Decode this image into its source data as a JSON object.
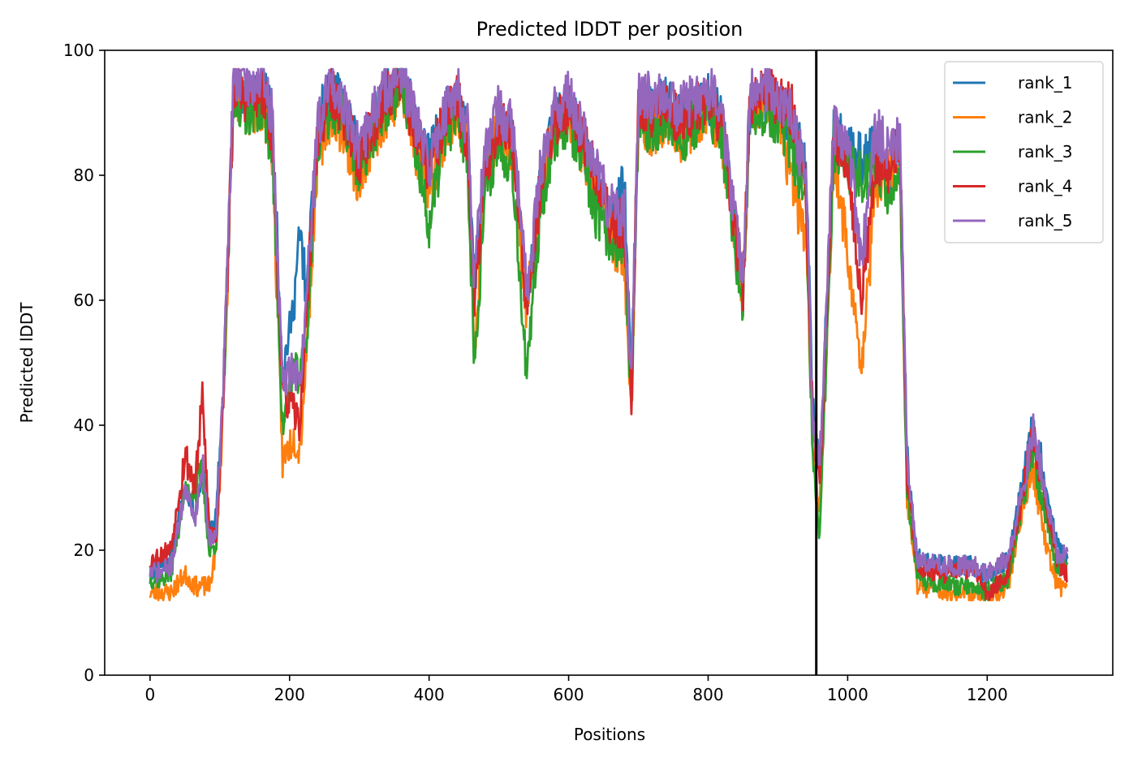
{
  "chart_data": {
    "type": "line",
    "title": "Predicted lDDT per position",
    "xlabel": "Positions",
    "ylabel": "Predicted lDDT",
    "xlim": [
      -65,
      1380
    ],
    "ylim": [
      0,
      100
    ],
    "xticks": [
      0,
      200,
      400,
      600,
      800,
      1000,
      1200
    ],
    "yticks": [
      0,
      20,
      40,
      60,
      80,
      100
    ],
    "grid": false,
    "legend_position": "top-right",
    "vline_x": 955,
    "vline_color": "#000000",
    "series": [
      {
        "name": "rank_1",
        "color": "#1f77b4",
        "offset": 0.6,
        "seed": 11,
        "x": [
          0,
          15,
          30,
          50,
          65,
          75,
          85,
          95,
          105,
          120,
          140,
          160,
          175,
          190,
          205,
          215,
          225,
          240,
          260,
          280,
          300,
          320,
          340,
          360,
          380,
          400,
          420,
          440,
          455,
          465,
          480,
          500,
          520,
          540,
          560,
          580,
          600,
          620,
          640,
          660,
          680,
          690,
          700,
          720,
          740,
          760,
          780,
          800,
          820,
          840,
          850,
          860,
          880,
          900,
          920,
          940,
          950,
          960,
          980,
          1000,
          1020,
          1040,
          1060,
          1075,
          1085,
          1100,
          1140,
          1180,
          1200,
          1230,
          1250,
          1265,
          1280,
          1300,
          1315
        ],
        "y": [
          16,
          17,
          18,
          30,
          25,
          33,
          22,
          25,
          45,
          93,
          92,
          94,
          88,
          48,
          58,
          70,
          60,
          88,
          93,
          90,
          82,
          88,
          93,
          96,
          88,
          82,
          88,
          93,
          85,
          62,
          80,
          88,
          85,
          58,
          78,
          88,
          90,
          85,
          78,
          72,
          78,
          45,
          90,
          90,
          92,
          89,
          90,
          92,
          88,
          68,
          60,
          90,
          92,
          90,
          88,
          80,
          42,
          32,
          86,
          84,
          82,
          84,
          80,
          85,
          35,
          18,
          17,
          17,
          15,
          18,
          30,
          40,
          32,
          20,
          18
        ]
      },
      {
        "name": "rank_2",
        "color": "#ff7f0e",
        "offset": -1.8,
        "seed": 23,
        "x": [
          0,
          15,
          30,
          50,
          65,
          75,
          85,
          95,
          105,
          120,
          140,
          160,
          175,
          190,
          205,
          215,
          225,
          240,
          260,
          280,
          300,
          320,
          340,
          360,
          380,
          400,
          420,
          440,
          455,
          465,
          480,
          500,
          520,
          540,
          560,
          580,
          600,
          620,
          640,
          660,
          680,
          690,
          700,
          720,
          740,
          760,
          780,
          800,
          820,
          840,
          850,
          860,
          880,
          900,
          920,
          940,
          950,
          960,
          980,
          1000,
          1020,
          1040,
          1060,
          1075,
          1085,
          1100,
          1140,
          1180,
          1200,
          1230,
          1250,
          1265,
          1280,
          1300,
          1315
        ],
        "y": [
          15,
          15,
          15,
          18,
          16,
          16,
          16,
          22,
          45,
          95,
          92,
          93,
          86,
          36,
          40,
          38,
          55,
          85,
          92,
          88,
          80,
          88,
          92,
          95,
          86,
          80,
          87,
          92,
          86,
          52,
          82,
          90,
          86,
          60,
          80,
          90,
          91,
          86,
          80,
          73,
          66,
          45,
          90,
          89,
          91,
          88,
          90,
          93,
          88,
          70,
          62,
          92,
          93,
          93,
          80,
          72,
          40,
          28,
          84,
          70,
          50,
          80,
          82,
          84,
          30,
          16,
          15,
          15,
          14,
          16,
          28,
          36,
          25,
          16,
          16
        ]
      },
      {
        "name": "rank_3",
        "color": "#2ca02c",
        "offset": -0.6,
        "seed": 37,
        "x": [
          0,
          15,
          30,
          50,
          65,
          75,
          85,
          95,
          105,
          120,
          140,
          160,
          175,
          190,
          205,
          215,
          225,
          240,
          260,
          280,
          300,
          320,
          340,
          360,
          380,
          400,
          420,
          440,
          455,
          465,
          480,
          500,
          520,
          540,
          560,
          580,
          600,
          620,
          640,
          660,
          680,
          690,
          700,
          720,
          740,
          760,
          780,
          800,
          820,
          840,
          850,
          860,
          880,
          900,
          920,
          940,
          950,
          960,
          980,
          1000,
          1020,
          1040,
          1060,
          1075,
          1085,
          1100,
          1140,
          1180,
          1200,
          1230,
          1250,
          1265,
          1280,
          1300,
          1315
        ],
        "y": [
          16,
          16,
          17,
          30,
          30,
          33,
          20,
          22,
          45,
          93,
          91,
          92,
          85,
          40,
          50,
          48,
          55,
          86,
          92,
          89,
          81,
          87,
          92,
          95,
          85,
          72,
          86,
          91,
          84,
          50,
          78,
          86,
          82,
          48,
          76,
          87,
          89,
          83,
          74,
          70,
          70,
          42,
          89,
          88,
          90,
          86,
          89,
          91,
          86,
          68,
          60,
          90,
          91,
          89,
          85,
          75,
          35,
          22,
          85,
          82,
          80,
          82,
          78,
          82,
          30,
          16,
          15,
          15,
          14,
          16,
          28,
          36,
          28,
          18,
          18
        ]
      },
      {
        "name": "rank_4",
        "color": "#d62728",
        "offset": 0.3,
        "seed": 53,
        "x": [
          0,
          15,
          30,
          50,
          65,
          75,
          85,
          95,
          105,
          120,
          140,
          160,
          175,
          190,
          205,
          215,
          225,
          240,
          260,
          280,
          300,
          320,
          340,
          360,
          380,
          400,
          420,
          440,
          455,
          465,
          480,
          500,
          520,
          540,
          560,
          580,
          600,
          620,
          640,
          660,
          680,
          690,
          700,
          720,
          740,
          760,
          780,
          800,
          820,
          840,
          850,
          860,
          880,
          900,
          920,
          940,
          950,
          960,
          980,
          1000,
          1020,
          1040,
          1060,
          1075,
          1085,
          1100,
          1140,
          1180,
          1200,
          1230,
          1250,
          1265,
          1280,
          1300,
          1315
        ],
        "y": [
          18,
          19,
          20,
          35,
          30,
          44,
          23,
          22,
          45,
          94,
          92,
          93,
          87,
          45,
          42,
          40,
          60,
          86,
          93,
          89,
          82,
          88,
          93,
          95,
          87,
          80,
          88,
          92,
          85,
          60,
          80,
          88,
          86,
          60,
          78,
          88,
          91,
          86,
          79,
          72,
          72,
          44,
          90,
          90,
          91,
          88,
          90,
          92,
          88,
          70,
          62,
          91,
          93,
          92,
          90,
          78,
          40,
          30,
          86,
          82,
          60,
          82,
          80,
          85,
          32,
          17,
          16,
          17,
          13,
          16,
          28,
          38,
          30,
          18,
          16
        ]
      },
      {
        "name": "rank_5",
        "color": "#9467bd",
        "offset": 1.5,
        "seed": 71,
        "x": [
          0,
          15,
          30,
          50,
          65,
          75,
          85,
          95,
          105,
          120,
          140,
          160,
          175,
          190,
          205,
          215,
          225,
          240,
          260,
          280,
          300,
          320,
          340,
          360,
          380,
          400,
          420,
          440,
          455,
          465,
          480,
          500,
          520,
          540,
          560,
          580,
          600,
          620,
          640,
          660,
          680,
          690,
          700,
          720,
          740,
          760,
          780,
          800,
          820,
          840,
          850,
          860,
          880,
          900,
          920,
          940,
          950,
          960,
          980,
          1000,
          1020,
          1040,
          1060,
          1075,
          1085,
          1100,
          1140,
          1180,
          1200,
          1230,
          1250,
          1265,
          1280,
          1300,
          1315
        ],
        "y": [
          15,
          15,
          16,
          28,
          24,
          32,
          20,
          22,
          45,
          95,
          93,
          94,
          88,
          45,
          48,
          45,
          60,
          86,
          94,
          90,
          82,
          89,
          93,
          95,
          87,
          80,
          88,
          93,
          86,
          62,
          82,
          89,
          86,
          60,
          80,
          89,
          91,
          86,
          79,
          73,
          72,
          45,
          91,
          91,
          92,
          89,
          91,
          93,
          88,
          70,
          62,
          92,
          93,
          91,
          88,
          78,
          38,
          32,
          86,
          84,
          64,
          86,
          82,
          84,
          32,
          17,
          16,
          16,
          15,
          17,
          28,
          38,
          30,
          18,
          18
        ]
      }
    ]
  }
}
